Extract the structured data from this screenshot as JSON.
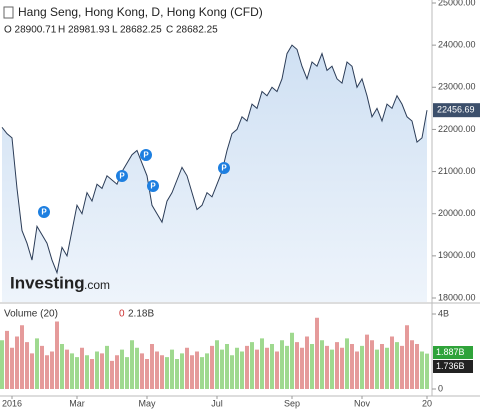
{
  "header": {
    "title": "Hang Seng, Hong Kong, D, Hong Kong (CFD)",
    "ohlc": [
      "O 28900.71",
      "H 28981.93",
      "L 28682.25",
      "C 28682.25"
    ],
    "logo": "Investing",
    "logo_suffix": ".com",
    "event_marker": "P"
  },
  "chart_data": [
    {
      "type": "area",
      "color": "#2b3c57",
      "fill": "#d6e5f5",
      "values": [
        22050,
        21900,
        21800,
        20600,
        19600,
        19300,
        18900,
        19700,
        19500,
        19300,
        18900,
        18600,
        19200,
        19000,
        19600,
        20200,
        20000,
        20500,
        20300,
        20700,
        20600,
        20900,
        20800,
        20700,
        21000,
        21200,
        21400,
        21500,
        21200,
        20900,
        20200,
        20000,
        19800,
        20300,
        20500,
        20800,
        21100,
        20900,
        20500,
        20100,
        20200,
        20500,
        20400,
        20700,
        21000,
        21500,
        21900,
        22000,
        22300,
        22200,
        22600,
        22500,
        22900,
        22800,
        23000,
        22900,
        23200,
        23800,
        24000,
        23900,
        23500,
        23200,
        23600,
        23500,
        23800,
        23400,
        23500,
        23200,
        23100,
        23600,
        23500,
        23000,
        23200,
        22800,
        22300,
        22500,
        22200,
        22600,
        22500,
        22800,
        22600,
        22300,
        22200,
        21700,
        21800,
        22456.69
      ],
      "ylim": [
        18000,
        25000
      ],
      "yticks": [
        {
          "value": 25000,
          "label": "25000.00"
        },
        {
          "value": 24000,
          "label": "24000.00"
        },
        {
          "value": 23000,
          "label": "23000.00"
        },
        {
          "value": 22000,
          "label": "22000.00"
        },
        {
          "value": 21000,
          "label": "21000.00"
        },
        {
          "value": 20000,
          "label": "20000.00"
        },
        {
          "value": 19000,
          "label": "19000.00"
        },
        {
          "value": 18000,
          "label": "18000.00"
        }
      ]
    },
    {
      "type": "bar",
      "title": "Volume (20)",
      "header_values": [
        "0",
        "2.18B"
      ],
      "up_color": "#9fd98f",
      "down_color": "#e59a9a",
      "categories": [
        null,
        null,
        "2016",
        null,
        null,
        null,
        null,
        null,
        null,
        null,
        null,
        null,
        null,
        null,
        null,
        "Mar",
        null,
        null,
        null,
        null,
        null,
        null,
        null,
        null,
        null,
        null,
        null,
        null,
        null,
        "May",
        null,
        null,
        null,
        null,
        null,
        null,
        null,
        null,
        null,
        null,
        null,
        null,
        null,
        "Jul",
        null,
        null,
        null,
        null,
        null,
        null,
        null,
        null,
        null,
        null,
        null,
        null,
        null,
        null,
        "Sep",
        null,
        null,
        null,
        null,
        null,
        null,
        null,
        null,
        null,
        null,
        null,
        null,
        null,
        "Nov",
        null,
        null,
        null,
        null,
        null,
        null,
        null,
        null,
        null,
        null,
        null,
        null,
        "20"
      ],
      "values": [
        2.6,
        3.1,
        2.2,
        2.8,
        3.4,
        2.5,
        1.9,
        2.7,
        2.3,
        1.8,
        2.0,
        3.6,
        2.4,
        2.1,
        1.9,
        1.7,
        2.2,
        1.8,
        1.6,
        2.0,
        1.9,
        2.3,
        1.5,
        1.8,
        2.1,
        1.7,
        2.6,
        2.2,
        1.9,
        1.6,
        2.4,
        2.0,
        1.8,
        1.7,
        2.1,
        1.6,
        1.9,
        2.2,
        1.8,
        2.0,
        1.7,
        1.9,
        2.3,
        2.6,
        2.1,
        2.4,
        1.8,
        2.2,
        2.0,
        2.3,
        2.5,
        2.1,
        2.7,
        2.2,
        2.4,
        2.0,
        2.6,
        2.3,
        3.0,
        2.5,
        2.2,
        2.8,
        2.4,
        3.8,
        2.6,
        2.3,
        2.1,
        2.5,
        2.2,
        2.7,
        2.4,
        2.0,
        2.3,
        2.9,
        2.6,
        2.1,
        2.4,
        2.2,
        2.8,
        2.5,
        2.3,
        3.4,
        2.6,
        2.4,
        2.0,
        1.887
      ],
      "last_value_label": "1.887B",
      "average_label": "1.736B",
      "ylim": [
        0,
        4
      ],
      "yticks": [
        {
          "value": 4,
          "label": "4B"
        },
        0
      ]
    }
  ]
}
